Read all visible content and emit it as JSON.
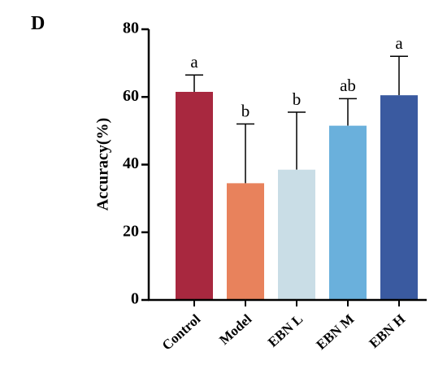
{
  "chart_data": {
    "type": "bar",
    "panel_label": "D",
    "y_label": "Accuracy(%)",
    "categories": [
      "Control",
      "Model",
      "EBN L",
      "EBN M",
      "EBN H"
    ],
    "values": [
      61.5,
      34.5,
      38.5,
      51.5,
      60.5
    ],
    "errors": [
      5,
      17.5,
      17,
      8,
      11.5
    ],
    "significance": [
      "a",
      "b",
      "b",
      "ab",
      "a"
    ],
    "colors": [
      "#a8283f",
      "#e8825c",
      "#c9dde6",
      "#6ab0dc",
      "#3a5aa0"
    ],
    "ylim": [
      0,
      80
    ],
    "yticks": [
      0,
      20,
      40,
      60,
      80
    ],
    "grid": false
  }
}
